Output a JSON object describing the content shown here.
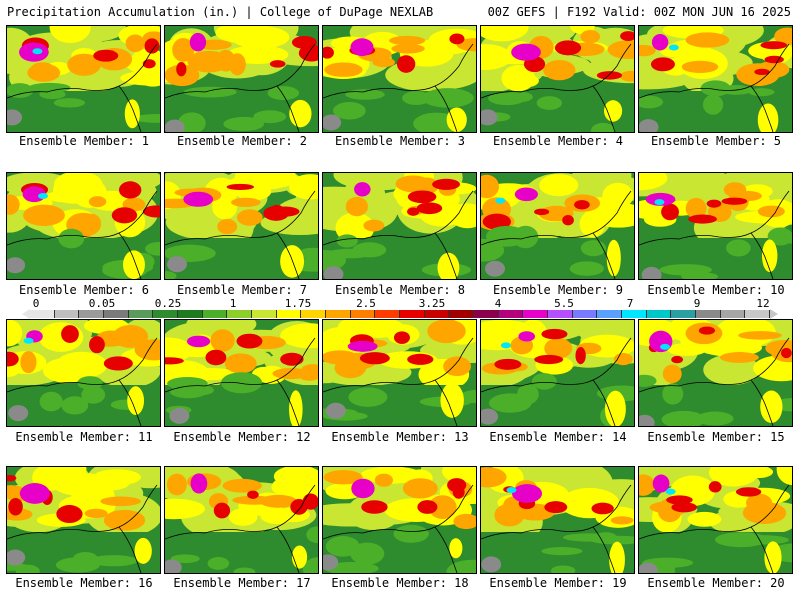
{
  "header": {
    "title": "Precipitation Accumulation (in.) | College of DuPage NEXLAB",
    "valid": "00Z GEFS | F192 Valid: 00Z MON JUN 16 2025"
  },
  "members": [
    "Ensemble Member: 1",
    "Ensemble Member: 2",
    "Ensemble Member: 3",
    "Ensemble Member: 4",
    "Ensemble Member: 5",
    "Ensemble Member: 6",
    "Ensemble Member: 7",
    "Ensemble Member: 8",
    "Ensemble Member: 9",
    "Ensemble Member: 10",
    "Ensemble Member: 11",
    "Ensemble Member: 12",
    "Ensemble Member: 13",
    "Ensemble Member: 14",
    "Ensemble Member: 15",
    "Ensemble Member: 16",
    "Ensemble Member: 17",
    "Ensemble Member: 18",
    "Ensemble Member: 19",
    "Ensemble Member: 20"
  ],
  "colorbar": {
    "labels": [
      "0",
      "0.05",
      "0.25",
      "1",
      "1.75",
      "2.5",
      "3.25",
      "4",
      "5.5",
      "7",
      "9",
      "12"
    ],
    "colors": [
      "#e6e6e6",
      "#bfbfbf",
      "#9a9a9a",
      "#7a7a7a",
      "#5a9a5a",
      "#2e8b2e",
      "#1f7a1f",
      "#4caf2a",
      "#8ccf2a",
      "#c8e632",
      "#ffff00",
      "#ffd400",
      "#ffa500",
      "#ff7f00",
      "#ff3c00",
      "#e60000",
      "#c80000",
      "#a00000",
      "#8b004b",
      "#b4007a",
      "#e600c8",
      "#b450ff",
      "#7a7aff",
      "#5aa0ff",
      "#00e6ff",
      "#00c8c8",
      "#2aa0a0",
      "#8a8a8a",
      "#a6a6a6",
      "#c8c8c8"
    ]
  },
  "map_colors": {
    "dry": "#2e8b2e",
    "light": "#4caf2a",
    "moderate": "#c8e632",
    "yellow": "#ffff00",
    "orange": "#ffa500",
    "red": "#e60000",
    "darkred": "#a00000",
    "magenta": "#e600c8",
    "cyan": "#00e6ff",
    "gray": "#8a8a8a"
  }
}
